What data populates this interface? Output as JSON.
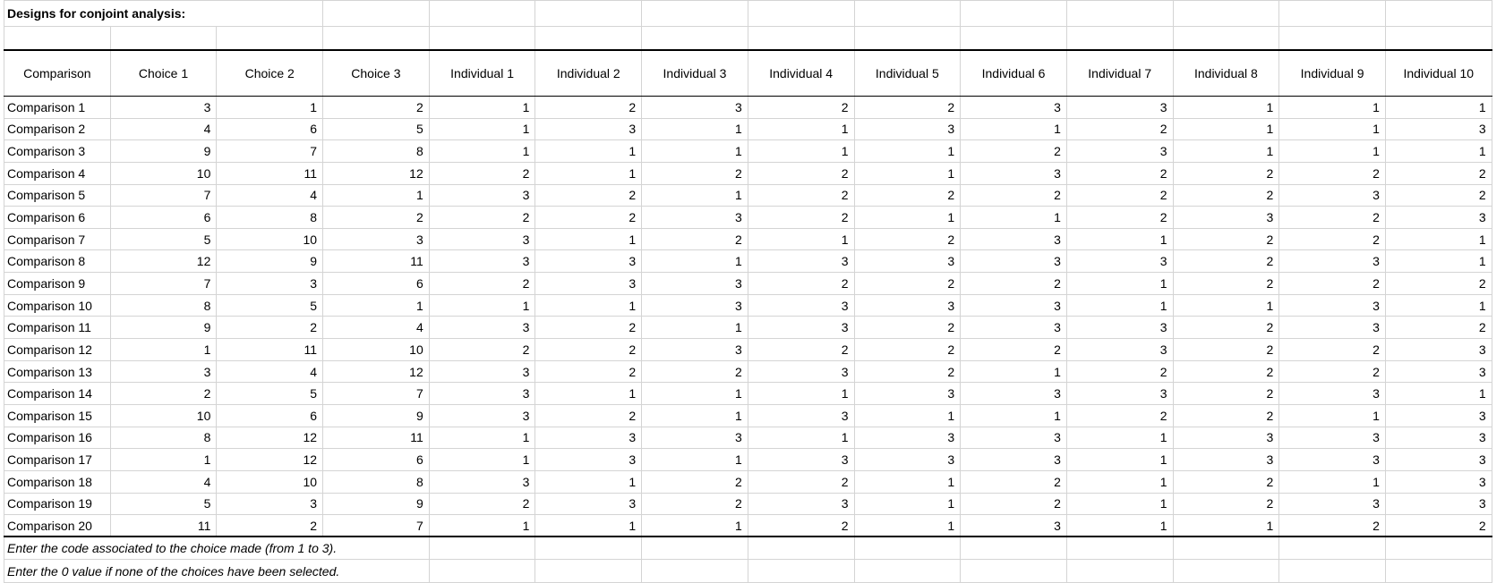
{
  "title": "Designs for conjoint analysis:",
  "headers": [
    "Comparison",
    "Choice 1",
    "Choice 2",
    "Choice 3",
    "Individual 1",
    "Individual 2",
    "Individual 3",
    "Individual 4",
    "Individual 5",
    "Individual 6",
    "Individual 7",
    "Individual 8",
    "Individual 9",
    "Individual 10"
  ],
  "rows": [
    [
      "Comparison 1",
      3,
      1,
      2,
      1,
      2,
      3,
      2,
      2,
      3,
      3,
      1,
      1,
      1
    ],
    [
      "Comparison 2",
      4,
      6,
      5,
      1,
      3,
      1,
      1,
      3,
      1,
      2,
      1,
      1,
      3
    ],
    [
      "Comparison 3",
      9,
      7,
      8,
      1,
      1,
      1,
      1,
      1,
      2,
      3,
      1,
      1,
      1
    ],
    [
      "Comparison 4",
      10,
      11,
      12,
      2,
      1,
      2,
      2,
      1,
      3,
      2,
      2,
      2,
      2
    ],
    [
      "Comparison 5",
      7,
      4,
      1,
      3,
      2,
      1,
      2,
      2,
      2,
      2,
      2,
      3,
      2
    ],
    [
      "Comparison 6",
      6,
      8,
      2,
      2,
      2,
      3,
      2,
      1,
      1,
      2,
      3,
      2,
      3
    ],
    [
      "Comparison 7",
      5,
      10,
      3,
      3,
      1,
      2,
      1,
      2,
      3,
      1,
      2,
      2,
      1
    ],
    [
      "Comparison 8",
      12,
      9,
      11,
      3,
      3,
      1,
      3,
      3,
      3,
      3,
      2,
      3,
      1
    ],
    [
      "Comparison 9",
      7,
      3,
      6,
      2,
      3,
      3,
      2,
      2,
      2,
      1,
      2,
      2,
      2
    ],
    [
      "Comparison 10",
      8,
      5,
      1,
      1,
      1,
      3,
      3,
      3,
      3,
      1,
      1,
      3,
      1
    ],
    [
      "Comparison 11",
      9,
      2,
      4,
      3,
      2,
      1,
      3,
      2,
      3,
      3,
      2,
      3,
      2
    ],
    [
      "Comparison 12",
      1,
      11,
      10,
      2,
      2,
      3,
      2,
      2,
      2,
      3,
      2,
      2,
      3
    ],
    [
      "Comparison 13",
      3,
      4,
      12,
      3,
      2,
      2,
      3,
      2,
      1,
      2,
      2,
      2,
      3
    ],
    [
      "Comparison 14",
      2,
      5,
      7,
      3,
      1,
      1,
      1,
      3,
      3,
      3,
      2,
      3,
      1
    ],
    [
      "Comparison 15",
      10,
      6,
      9,
      3,
      2,
      1,
      3,
      1,
      1,
      2,
      2,
      1,
      3
    ],
    [
      "Comparison 16",
      8,
      12,
      11,
      1,
      3,
      3,
      1,
      3,
      3,
      1,
      3,
      3,
      3
    ],
    [
      "Comparison 17",
      1,
      12,
      6,
      1,
      3,
      1,
      3,
      3,
      3,
      1,
      3,
      3,
      3
    ],
    [
      "Comparison 18",
      4,
      10,
      8,
      3,
      1,
      2,
      2,
      1,
      2,
      1,
      2,
      1,
      3
    ],
    [
      "Comparison 19",
      5,
      3,
      9,
      2,
      3,
      2,
      3,
      1,
      2,
      1,
      2,
      3,
      3
    ],
    [
      "Comparison 20",
      11,
      2,
      7,
      1,
      1,
      1,
      2,
      1,
      3,
      1,
      1,
      2,
      2
    ]
  ],
  "notes": [
    "Enter the code associated to the choice made (from 1 to 3).",
    "Enter the 0 value if none of the choices have been selected."
  ]
}
